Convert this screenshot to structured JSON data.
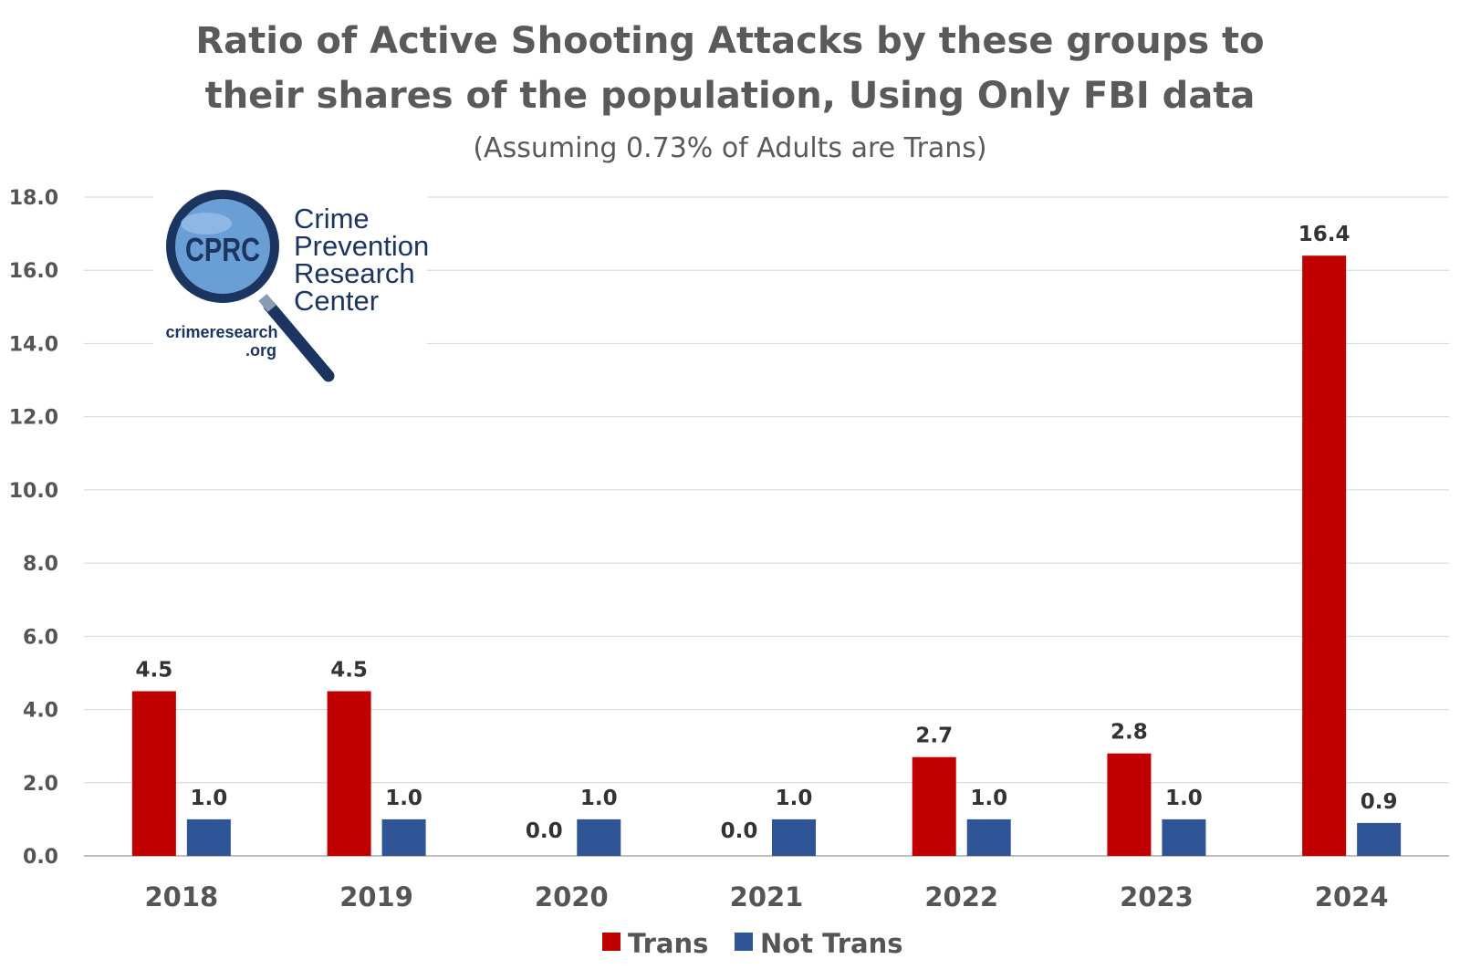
{
  "chart_data": {
    "type": "bar",
    "title_lines": [
      "Ratio of Active Shooting Attacks by these groups to",
      "their shares of the population, Using Only FBI data"
    ],
    "subtitle": "(Assuming 0.73% of Adults are Trans)",
    "categories": [
      "2018",
      "2019",
      "2020",
      "2021",
      "2022",
      "2023",
      "2024"
    ],
    "series": [
      {
        "name": "Trans",
        "color": "#c00000",
        "values": [
          4.5,
          4.5,
          0.0,
          0.0,
          2.7,
          2.8,
          16.4
        ]
      },
      {
        "name": "Not Trans",
        "color": "#2f5597",
        "values": [
          1.0,
          1.0,
          1.0,
          1.0,
          1.0,
          1.0,
          0.9
        ]
      }
    ],
    "ylim": [
      0,
      18
    ],
    "yticks": [
      0,
      2,
      4,
      6,
      8,
      10,
      12,
      14,
      16,
      18
    ],
    "tick_format": "one-decimal",
    "grid": true,
    "legend_position": "bottom-center",
    "xlabel": "",
    "ylabel": ""
  },
  "logo": {
    "monogram": "CPRC",
    "name_lines": [
      "Crime",
      "Prevention",
      "Research",
      "Center"
    ],
    "url_lines": [
      "crimeresearch",
      ".org"
    ],
    "icon": "magnifying-glass-icon",
    "colors": {
      "navy": "#1c3560",
      "lens": "#6a9fd6"
    }
  }
}
